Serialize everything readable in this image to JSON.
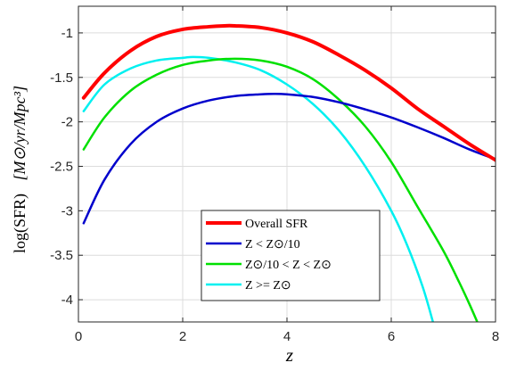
{
  "chart_data": {
    "type": "line",
    "xlabel": "z",
    "ylabel_main": "log(SFR)",
    "ylabel_units": "[M⊙/yr/Mpc³]",
    "xlim": [
      0,
      8
    ],
    "ylim": [
      -4.25,
      -0.7
    ],
    "xticks": [
      0,
      2,
      4,
      6,
      8
    ],
    "xtick_labels": [
      "0",
      "2",
      "4",
      "6",
      "8"
    ],
    "yticks": [
      -1,
      -1.5,
      -2,
      -2.5,
      -3,
      -3.5,
      -4
    ],
    "ytick_labels": [
      "-1",
      "-1.5",
      "-2",
      "-2.5",
      "-3",
      "-3.5",
      "-4"
    ],
    "grid": true,
    "legend_position": "bottom-center",
    "series": [
      {
        "name": "Overall SFR",
        "color": "#ff0000",
        "x": [
          0.1,
          0.5,
          1,
          1.5,
          2,
          2.5,
          2.8,
          3,
          3.5,
          4,
          4.5,
          5,
          5.5,
          6,
          6.5,
          7,
          7.5,
          8
        ],
        "y": [
          -1.73,
          -1.45,
          -1.2,
          -1.04,
          -0.96,
          -0.93,
          -0.92,
          -0.92,
          -0.94,
          -1.0,
          -1.1,
          -1.25,
          -1.42,
          -1.62,
          -1.85,
          -2.05,
          -2.25,
          -2.43
        ]
      },
      {
        "name": "Z < Z⊙/10",
        "color": "#0000cc",
        "x": [
          0.1,
          0.5,
          1,
          1.5,
          2,
          2.5,
          3,
          3.5,
          3.75,
          4,
          4.5,
          5,
          5.5,
          6,
          6.5,
          7,
          7.5,
          8
        ],
        "y": [
          -3.14,
          -2.65,
          -2.25,
          -2.0,
          -1.85,
          -1.76,
          -1.71,
          -1.69,
          -1.685,
          -1.69,
          -1.72,
          -1.78,
          -1.86,
          -1.95,
          -2.06,
          -2.18,
          -2.31,
          -2.42
        ]
      },
      {
        "name": "Z⊙/10 < Z < Z⊙",
        "color": "#00e000",
        "x": [
          0.1,
          0.5,
          1,
          1.5,
          2,
          2.5,
          3,
          3.5,
          4,
          4.5,
          5,
          5.5,
          6,
          6.5,
          7,
          7.3,
          7.5,
          7.65
        ],
        "y": [
          -2.31,
          -1.95,
          -1.65,
          -1.47,
          -1.36,
          -1.31,
          -1.29,
          -1.31,
          -1.38,
          -1.52,
          -1.75,
          -2.05,
          -2.45,
          -2.95,
          -3.45,
          -3.8,
          -4.05,
          -4.25
        ]
      },
      {
        "name": "Z >= Z⊙",
        "color": "#00f0f0",
        "x": [
          0.1,
          0.5,
          1,
          1.5,
          2,
          2.2,
          2.5,
          3,
          3.5,
          4,
          4.5,
          5,
          5.5,
          6,
          6.3,
          6.6,
          6.8
        ],
        "y": [
          -1.88,
          -1.58,
          -1.4,
          -1.31,
          -1.28,
          -1.27,
          -1.28,
          -1.33,
          -1.42,
          -1.58,
          -1.8,
          -2.1,
          -2.5,
          -3.0,
          -3.38,
          -3.85,
          -4.25
        ]
      }
    ]
  }
}
